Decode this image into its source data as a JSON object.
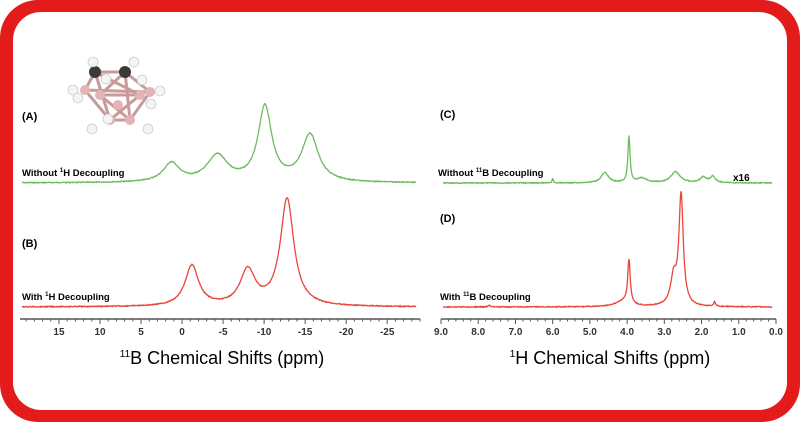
{
  "colors": {
    "frame": "#e31b1b",
    "without": "#6dbb5f",
    "with": "#e8463c",
    "axis": "#555555"
  },
  "chart_data": [
    {
      "type": "line",
      "xlabel_prefix": "11",
      "xlabel": "B Chemical Shifts (ppm)",
      "xlim": [
        19.75,
        -29
      ],
      "xticks": [
        "15",
        "10",
        "5",
        "0",
        "-5",
        "-10",
        "-15",
        "-20",
        "-25"
      ],
      "tick_values": [
        15,
        10,
        5,
        0,
        -5,
        -10,
        -15,
        -20,
        -25
      ],
      "series": [
        {
          "panel": "(A)",
          "name_pre": "Without ",
          "name_sup": "1",
          "name_post": "H Decoupling",
          "color_key": "without",
          "peaks": [
            {
              "ppm": 1.3,
              "height": 0.25,
              "width": 1.2
            },
            {
              "ppm": -4.3,
              "height": 0.35,
              "width": 1.5
            },
            {
              "ppm": -10.1,
              "height": 1.0,
              "width": 1.0
            },
            {
              "ppm": -15.6,
              "height": 0.63,
              "width": 1.2
            }
          ]
        },
        {
          "panel": "(B)",
          "name_pre": "With ",
          "name_sup": "1",
          "name_post": "H Decoupling",
          "color_key": "with",
          "peaks": [
            {
              "ppm": -1.2,
              "height": 0.38,
              "width": 1.0
            },
            {
              "ppm": -8.0,
              "height": 0.33,
              "width": 1.1
            },
            {
              "ppm": -12.8,
              "height": 1.0,
              "width": 1.0
            }
          ]
        }
      ]
    },
    {
      "type": "line",
      "xlabel_prefix": "1",
      "xlabel": "H Chemical Shifts (ppm)",
      "xlim": [
        9.0,
        0.0
      ],
      "xticks": [
        "9.0",
        "8.0",
        "7.0",
        "6.0",
        "5.0",
        "4.0",
        "3.0",
        "2.0",
        "1.0",
        "0.0"
      ],
      "tick_values": [
        9,
        8,
        7,
        6,
        5,
        4,
        3,
        2,
        1,
        0
      ],
      "series": [
        {
          "panel": "(C)",
          "name_pre": "Without ",
          "name_sup": "11",
          "name_post": "B Decoupling",
          "color_key": "without",
          "scale_label": "x16",
          "peaks": [
            {
              "ppm": 6.0,
              "height": 0.09,
              "width": 0.02
            },
            {
              "ppm": 4.6,
              "height": 0.22,
              "width": 0.12
            },
            {
              "ppm": 3.95,
              "height": 1.0,
              "width": 0.035
            },
            {
              "ppm": 3.6,
              "height": 0.1,
              "width": 0.15
            },
            {
              "ppm": 2.7,
              "height": 0.24,
              "width": 0.15
            },
            {
              "ppm": 1.95,
              "height": 0.12,
              "width": 0.1
            },
            {
              "ppm": 1.7,
              "height": 0.14,
              "width": 0.08
            }
          ]
        },
        {
          "panel": "(D)",
          "name_pre": "With ",
          "name_sup": "11",
          "name_post": "B Decoupling",
          "color_key": "with",
          "peaks": [
            {
              "ppm": 7.7,
              "height": 0.02,
              "width": 0.03
            },
            {
              "ppm": 4.1,
              "height": 0.05,
              "width": 0.25
            },
            {
              "ppm": 3.95,
              "height": 0.4,
              "width": 0.04
            },
            {
              "ppm": 2.55,
              "height": 1.0,
              "width": 0.07
            },
            {
              "ppm": 2.75,
              "height": 0.25,
              "width": 0.1
            },
            {
              "ppm": 1.65,
              "height": 0.04,
              "width": 0.03
            }
          ]
        }
      ]
    }
  ]
}
